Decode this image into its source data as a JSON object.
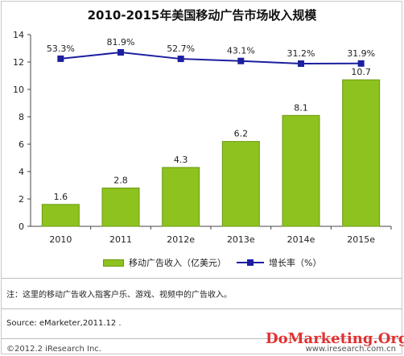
{
  "title": "2010-2015年美国移动广告市场收入规模",
  "chart_data": {
    "type": "bar",
    "categories": [
      "2010",
      "2011",
      "2012e",
      "2013e",
      "2014e",
      "2015e"
    ],
    "series": [
      {
        "name": "移动广告收入（亿美元）",
        "type": "bar",
        "axis": "left",
        "values": [
          1.6,
          2.8,
          4.3,
          6.2,
          8.1,
          10.7
        ],
        "labels": [
          "1.6",
          "2.8",
          "4.3",
          "6.2",
          "8.1",
          "10.7"
        ],
        "color": "#8ec21f"
      },
      {
        "name": "增长率（%）",
        "type": "line",
        "axis": "none",
        "values": [
          53.3,
          81.9,
          52.7,
          43.1,
          31.2,
          31.9
        ],
        "labels": [
          "53.3%",
          "81.9%",
          "52.7%",
          "43.1%",
          "31.2%",
          "31.9%"
        ],
        "color": "#1c1fa0"
      }
    ],
    "yticks": [
      "0",
      "2",
      "4",
      "6",
      "8",
      "10",
      "12",
      "14"
    ],
    "ylim": [
      0,
      14
    ],
    "grid": false,
    "legend_position": "bottom"
  },
  "legend": {
    "bar_label": "移动广告收入（亿美元）",
    "line_label": "增长率（%）"
  },
  "note": "注：这里的移动广告收入指客户乐、游戏、视频中的广告收入。",
  "source": "Source: eMarketer,2011.12 .",
  "copyright": "©2012.2 iResearch Inc.",
  "site": "www.iresearch.com.cn",
  "watermark": "DoMarketing.Org"
}
